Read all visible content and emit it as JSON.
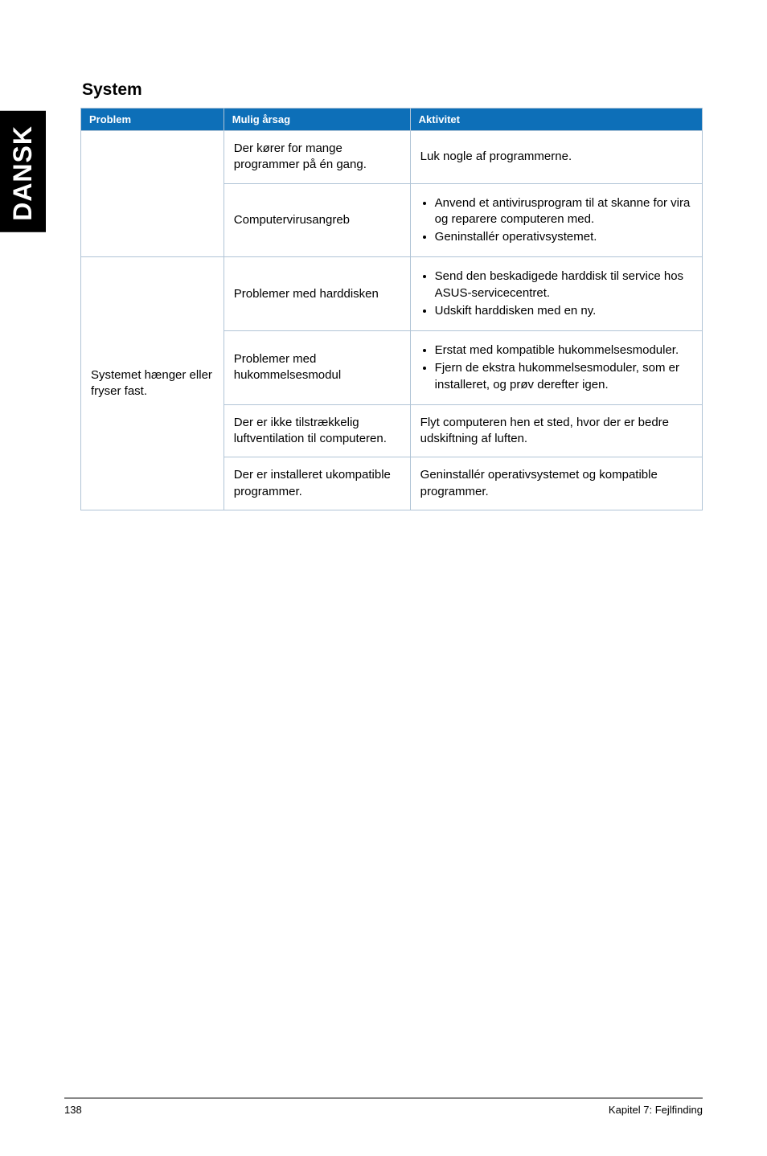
{
  "side_tab": "DANSK",
  "section_title": "System",
  "table": {
    "headers": {
      "problem": "Problem",
      "cause": "Mulig årsag",
      "activity": "Aktivitet"
    },
    "group1": {
      "row1": {
        "cause": "Der kører for mange programmer på én gang.",
        "activity": "Luk nogle af programmerne."
      },
      "row2": {
        "cause": "Computervirusangreb",
        "activity_items": [
          "Anvend et antivirusprogram til at skanne for vira og reparere computeren med.",
          "Geninstallér operativsystemet."
        ]
      }
    },
    "group2": {
      "problem": "Systemet hænger eller fryser fast.",
      "row1": {
        "cause": "Problemer med harddisken",
        "activity_items": [
          "Send den beskadigede harddisk til service hos ASUS-servicecentret.",
          "Udskift harddisken med en ny."
        ]
      },
      "row2": {
        "cause": "Problemer med hukommelsesmodul",
        "activity_items": [
          "Erstat med kompatible hukommelsesmoduler.",
          "Fjern de ekstra hukommelsesmoduler, som er installeret, og prøv derefter igen."
        ]
      },
      "row3": {
        "cause": "Der er ikke tilstrækkelig luftventilation til computeren.",
        "activity": "Flyt computeren hen et sted, hvor der er bedre udskiftning af luften."
      },
      "row4": {
        "cause": "Der er installeret ukompatible programmer.",
        "activity": "Geninstallér operativsystemet og kompatible programmer."
      }
    }
  },
  "footer": {
    "page_number": "138",
    "chapter": "Kapitel 7: Fejlfinding"
  }
}
